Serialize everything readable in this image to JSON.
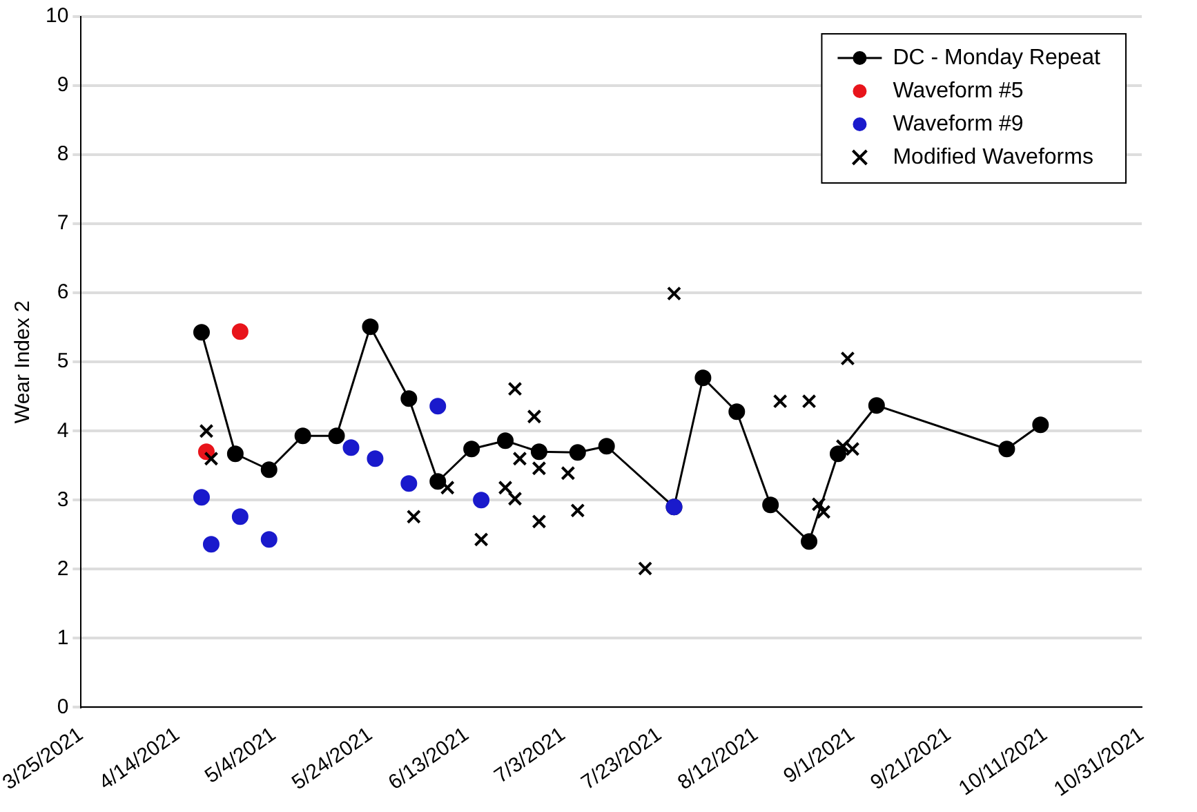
{
  "chart_data": {
    "type": "scatter",
    "ylabel": "Wear Index 2",
    "xlim": [
      "2021-03-25",
      "2021-10-31"
    ],
    "xticks": [
      {
        "value": "2021-03-25",
        "label": "3/25/2021"
      },
      {
        "value": "2021-04-14",
        "label": "4/14/2021"
      },
      {
        "value": "2021-05-04",
        "label": "5/4/2021"
      },
      {
        "value": "2021-05-24",
        "label": "5/24/2021"
      },
      {
        "value": "2021-06-13",
        "label": "6/13/2021"
      },
      {
        "value": "2021-07-03",
        "label": "7/3/2021"
      },
      {
        "value": "2021-07-23",
        "label": "7/23/2021"
      },
      {
        "value": "2021-08-12",
        "label": "8/12/2021"
      },
      {
        "value": "2021-09-01",
        "label": "9/1/2021"
      },
      {
        "value": "2021-09-21",
        "label": "9/21/2021"
      },
      {
        "value": "2021-10-11",
        "label": "10/11/2021"
      },
      {
        "value": "2021-10-31",
        "label": "10/31/2021"
      }
    ],
    "ylim": [
      0,
      10
    ],
    "yticks": [
      0,
      1,
      2,
      3,
      4,
      5,
      6,
      7,
      8,
      9,
      10
    ],
    "grid": "y",
    "legend": "top right",
    "series": [
      {
        "name": "DC - Monday Repeat",
        "type": "line",
        "marker": "circle",
        "line_style": "solid",
        "color": "#000000",
        "x": [
          "2021-04-19",
          "2021-04-26",
          "2021-05-03",
          "2021-05-10",
          "2021-05-17",
          "2021-05-24",
          "2021-06-01",
          "2021-06-07",
          "2021-06-14",
          "2021-06-21",
          "2021-06-28",
          "2021-07-06",
          "2021-07-12",
          "2021-07-26",
          "2021-08-01",
          "2021-08-08",
          "2021-08-15",
          "2021-08-23",
          "2021-08-29",
          "2021-09-06",
          "2021-10-03",
          "2021-10-10"
        ],
        "values": [
          5.43,
          3.67,
          3.44,
          3.93,
          3.93,
          5.51,
          4.47,
          3.27,
          3.74,
          3.86,
          3.7,
          3.69,
          3.78,
          2.9,
          4.77,
          4.28,
          2.93,
          2.4,
          3.67,
          4.37,
          3.74,
          4.09
        ]
      },
      {
        "name": "Waveform #5",
        "type": "scatter",
        "marker": "circle",
        "color": "#e8141b",
        "x": [
          "2021-04-20",
          "2021-04-27"
        ],
        "values": [
          3.7,
          5.44
        ]
      },
      {
        "name": "Waveform #9",
        "type": "scatter",
        "marker": "circle",
        "color": "#1a1acc",
        "x": [
          "2021-04-19",
          "2021-04-21",
          "2021-04-27",
          "2021-05-03",
          "2021-05-20",
          "2021-05-25",
          "2021-06-01",
          "2021-06-07",
          "2021-06-16",
          "2021-07-26"
        ],
        "values": [
          3.04,
          2.36,
          2.76,
          2.43,
          3.76,
          3.6,
          3.24,
          4.36,
          3.0,
          2.9
        ]
      },
      {
        "name": "Modified Waveforms",
        "type": "scatter",
        "marker": "cross",
        "color": "#000000",
        "x": [
          "2021-04-20",
          "2021-04-21",
          "2021-06-02",
          "2021-06-09",
          "2021-06-16",
          "2021-06-21",
          "2021-06-23",
          "2021-06-23",
          "2021-06-24",
          "2021-06-27",
          "2021-06-28",
          "2021-06-28",
          "2021-07-04",
          "2021-07-06",
          "2021-07-20",
          "2021-07-26",
          "2021-08-15",
          "2021-08-17",
          "2021-08-23",
          "2021-08-25",
          "2021-08-26",
          "2021-08-30",
          "2021-08-31",
          "2021-09-01"
        ],
        "values": [
          4.0,
          3.6,
          2.76,
          3.18,
          2.43,
          3.18,
          4.61,
          3.02,
          3.6,
          4.21,
          3.46,
          2.69,
          3.39,
          2.85,
          2.01,
          5.99,
          2.93,
          4.43,
          4.43,
          2.94,
          2.83,
          3.78,
          5.05,
          3.74
        ]
      }
    ]
  }
}
